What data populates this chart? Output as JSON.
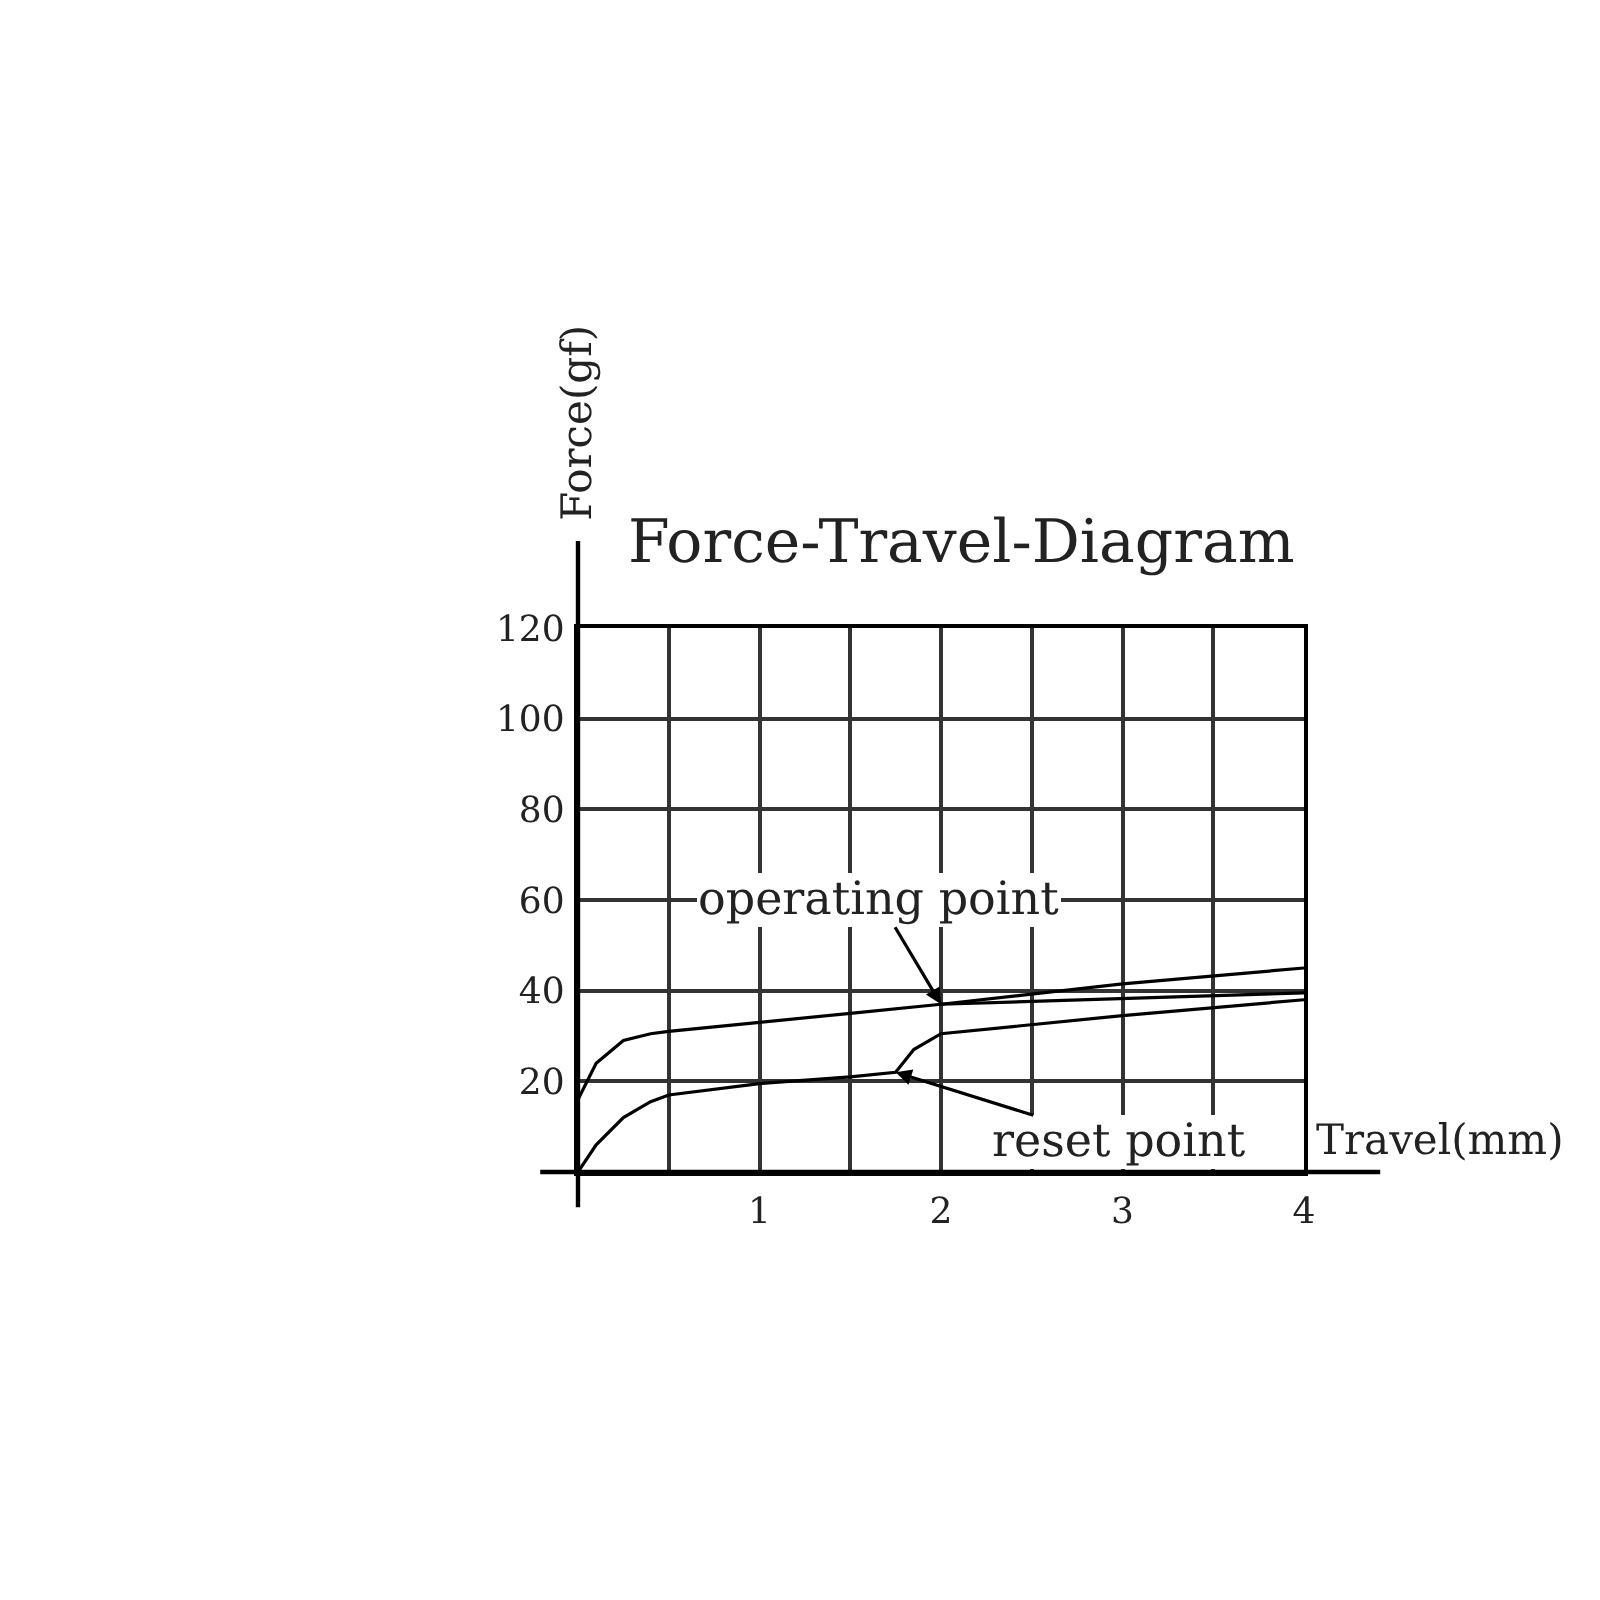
{
  "chart_data": {
    "type": "line",
    "title": "Force-Travel-Diagram",
    "xlabel": "Travel(mm)",
    "ylabel": "Force(gf)",
    "xlim": [
      0,
      4
    ],
    "ylim": [
      0,
      120
    ],
    "xticks": [
      {
        "value": 0,
        "label": null
      },
      {
        "value": 0.5,
        "label": null
      },
      1,
      {
        "value": 1.5,
        "label": null
      },
      2,
      {
        "value": 2.5,
        "label": null
      },
      3,
      {
        "value": 3.5,
        "label": null
      },
      4
    ],
    "yticks": [
      {
        "value": 0,
        "label": null
      },
      20,
      40,
      60,
      80,
      100,
      120
    ],
    "grid": true,
    "marker": "none",
    "line_style": "solid",
    "series": [
      {
        "color": "#000000",
        "x": [
          0,
          0.1,
          0.25,
          0.4,
          0.5,
          1,
          1.5,
          2,
          3,
          4
        ],
        "values": [
          16,
          24,
          29,
          30.5,
          31,
          33,
          35,
          37,
          41.5,
          45
        ]
      },
      {
        "color": "#000000",
        "x": [
          2,
          4
        ],
        "values": [
          37,
          39.5
        ]
      },
      {
        "color": "#000000",
        "x": [
          0,
          0.1,
          0.25,
          0.4,
          0.5,
          1,
          1.5,
          1.75,
          1.85,
          2,
          3,
          4
        ],
        "values": [
          0,
          6,
          12,
          15.5,
          17,
          19.5,
          21,
          22,
          27,
          30.5,
          34.5,
          38
        ]
      }
    ],
    "annotations": [
      {
        "text": "operating point",
        "x": 2,
        "y": 37
      },
      {
        "text": "reset point",
        "x": 1.75,
        "y": 22
      }
    ]
  }
}
